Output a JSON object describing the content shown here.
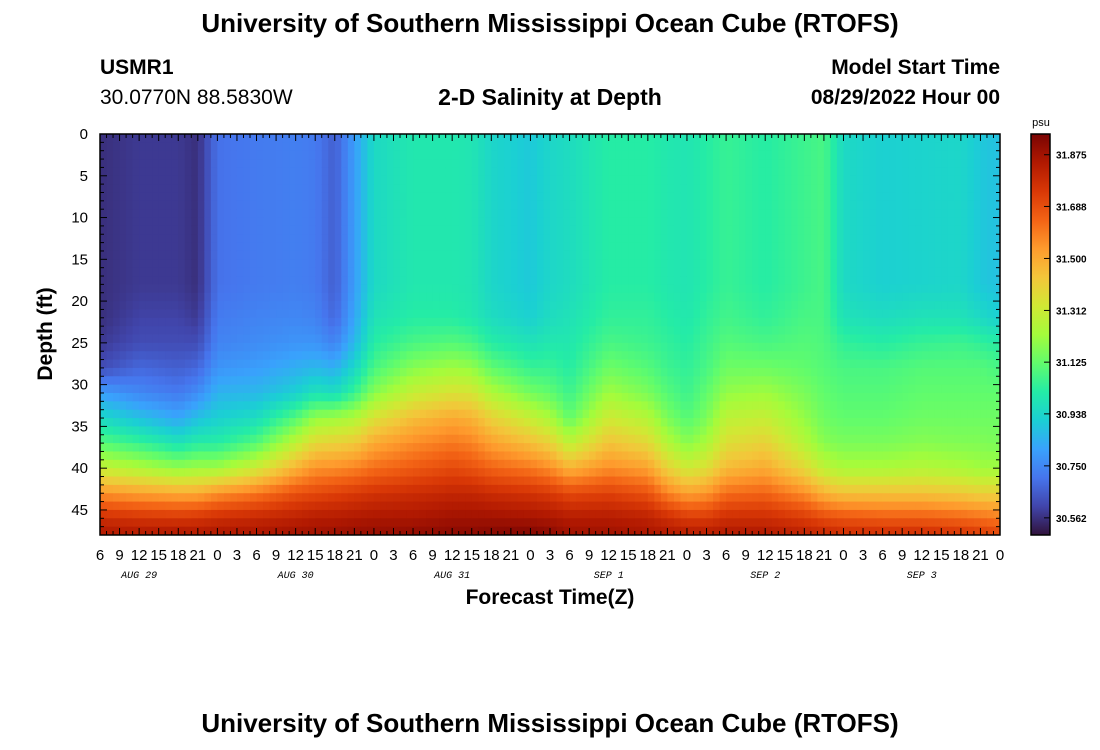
{
  "page": {
    "title": "University of Southern Mississippi Ocean Cube (RTOFS)",
    "title_repeat": "University of Southern Mississippi Ocean Cube (RTOFS)",
    "station_id": "USMR1",
    "station_coords": "30.0770N  88.5830W",
    "subtitle": "2-D Salinity at Depth",
    "start_label": "Model Start Time",
    "start_value": "08/29/2022 Hour 00"
  },
  "chart_data": {
    "type": "heatmap",
    "title": "2-D Salinity at Depth",
    "xlabel": "Forecast Time(Z)",
    "ylabel": "Depth (ft)",
    "x_tick_labels": [
      "6",
      "9",
      "12",
      "15",
      "18",
      "21",
      "0",
      "3",
      "6",
      "9",
      "12",
      "15",
      "18",
      "21",
      "0",
      "3",
      "6",
      "9",
      "12",
      "15",
      "18",
      "21",
      "0",
      "3",
      "6",
      "9",
      "12",
      "15",
      "18",
      "21",
      "0",
      "3",
      "6",
      "9",
      "12",
      "15",
      "18",
      "21",
      "0",
      "3",
      "6",
      "9",
      "12",
      "15",
      "18",
      "21",
      "0"
    ],
    "date_labels": [
      {
        "label": "AUG 29",
        "hour": 0
      },
      {
        "label": "AUG 30",
        "hour": 24
      },
      {
        "label": "AUG 31",
        "hour": 48
      },
      {
        "label": "SEP 1",
        "hour": 72
      },
      {
        "label": "SEP 2",
        "hour": 96
      },
      {
        "label": "SEP 3",
        "hour": 120
      }
    ],
    "x_range_hours_since_start": [
      6,
      144
    ],
    "y_ticks": [
      0,
      5,
      10,
      15,
      20,
      25,
      30,
      35,
      40,
      45
    ],
    "ylim": [
      0,
      48
    ],
    "colorbar": {
      "unit": "psu",
      "ticks": [
        "31.875",
        "31.688",
        "31.500",
        "31.312",
        "31.125",
        "30.938",
        "30.750",
        "30.562"
      ],
      "range": [
        30.5,
        31.95
      ],
      "colors": [
        "#30123b",
        "#4145ab",
        "#4675ed",
        "#39a2fc",
        "#1bcfd4",
        "#24eca6",
        "#61fc6c",
        "#a4fc3b",
        "#d1e834",
        "#f3c63a",
        "#fe9b2d",
        "#f36315",
        "#d93806",
        "#b11901",
        "#7a0403"
      ]
    },
    "time_nodes_hours": [
      6,
      12,
      18,
      21,
      24,
      30,
      36,
      39,
      42,
      45,
      48,
      54,
      60,
      63,
      66,
      72,
      75,
      78,
      84,
      90,
      93,
      96,
      99,
      102,
      108,
      114,
      117,
      120,
      126,
      132,
      138,
      141,
      144
    ],
    "depth_nodes_ft": [
      0,
      18,
      22,
      25,
      28,
      31,
      34,
      37,
      40,
      43,
      46,
      48
    ],
    "values_psu": [
      [
        30.56,
        30.56,
        30.56,
        30.58,
        30.62,
        30.8,
        30.95,
        31.1,
        31.3,
        31.55,
        31.78,
        31.85
      ],
      [
        30.58,
        30.58,
        30.6,
        30.62,
        30.68,
        30.75,
        30.88,
        31.05,
        31.25,
        31.52,
        31.76,
        31.85
      ],
      [
        30.58,
        30.58,
        30.6,
        30.62,
        30.66,
        30.72,
        30.82,
        30.98,
        31.2,
        31.5,
        31.75,
        31.86
      ],
      [
        30.56,
        30.56,
        30.58,
        30.62,
        30.68,
        30.76,
        30.88,
        31.02,
        31.22,
        31.5,
        31.76,
        31.85
      ],
      [
        30.7,
        30.7,
        30.72,
        30.74,
        30.78,
        30.85,
        30.92,
        31.02,
        31.22,
        31.55,
        31.78,
        31.86
      ],
      [
        30.72,
        30.72,
        30.74,
        30.76,
        30.8,
        30.86,
        30.96,
        31.1,
        31.32,
        31.6,
        31.8,
        31.86
      ],
      [
        30.73,
        30.73,
        30.75,
        30.78,
        30.84,
        30.92,
        31.1,
        31.28,
        31.48,
        31.68,
        31.82,
        31.88
      ],
      [
        30.72,
        30.72,
        30.74,
        30.78,
        30.86,
        30.98,
        31.2,
        31.38,
        31.55,
        31.7,
        31.84,
        31.88
      ],
      [
        30.66,
        30.66,
        30.68,
        30.74,
        30.84,
        30.96,
        31.22,
        31.4,
        31.56,
        31.72,
        31.84,
        31.89
      ],
      [
        30.8,
        30.8,
        30.82,
        30.86,
        30.94,
        31.05,
        31.25,
        31.42,
        31.58,
        31.74,
        31.85,
        31.9
      ],
      [
        30.95,
        30.95,
        30.98,
        31.02,
        31.08,
        31.18,
        31.35,
        31.5,
        31.62,
        31.76,
        31.86,
        31.9
      ],
      [
        31.0,
        31.0,
        31.02,
        31.08,
        31.18,
        31.3,
        31.45,
        31.56,
        31.66,
        31.78,
        31.86,
        31.91
      ],
      [
        31.0,
        31.0,
        31.02,
        31.1,
        31.22,
        31.35,
        31.5,
        31.6,
        31.7,
        31.8,
        31.88,
        31.92
      ],
      [
        30.99,
        30.99,
        31.0,
        31.08,
        31.2,
        31.34,
        31.48,
        31.58,
        31.68,
        31.8,
        31.88,
        31.92
      ],
      [
        30.94,
        30.94,
        30.96,
        31.02,
        31.12,
        31.25,
        31.4,
        31.52,
        31.64,
        31.78,
        31.88,
        31.93
      ],
      [
        30.9,
        30.9,
        30.92,
        30.98,
        31.05,
        31.15,
        31.3,
        31.45,
        31.6,
        31.76,
        31.87,
        31.94
      ],
      [
        30.94,
        30.94,
        30.96,
        31.0,
        31.05,
        31.12,
        31.24,
        31.4,
        31.56,
        31.74,
        31.86,
        31.92
      ],
      [
        30.96,
        30.96,
        30.98,
        31.0,
        31.02,
        31.06,
        31.12,
        31.28,
        31.48,
        31.7,
        31.84,
        31.88
      ],
      [
        31.02,
        31.02,
        31.04,
        31.08,
        31.14,
        31.22,
        31.32,
        31.44,
        31.56,
        31.72,
        31.84,
        31.88
      ],
      [
        31.02,
        31.02,
        31.04,
        31.06,
        31.1,
        31.16,
        31.26,
        31.38,
        31.52,
        31.68,
        31.82,
        31.86
      ],
      [
        31.0,
        31.0,
        31.02,
        31.04,
        31.06,
        31.1,
        31.16,
        31.26,
        31.4,
        31.58,
        31.78,
        31.85
      ],
      [
        30.99,
        30.99,
        31.0,
        31.02,
        31.04,
        31.06,
        31.1,
        31.18,
        31.32,
        31.52,
        31.74,
        31.84
      ],
      [
        31.02,
        31.02,
        31.04,
        31.06,
        31.08,
        31.12,
        31.16,
        31.24,
        31.36,
        31.54,
        31.74,
        31.84
      ],
      [
        31.05,
        31.05,
        31.07,
        31.1,
        31.14,
        31.2,
        31.28,
        31.36,
        31.46,
        31.62,
        31.78,
        31.85
      ],
      [
        31.02,
        31.02,
        31.04,
        31.08,
        31.14,
        31.22,
        31.3,
        31.4,
        31.5,
        31.64,
        31.78,
        31.85
      ],
      [
        31.06,
        31.06,
        31.08,
        31.1,
        31.12,
        31.16,
        31.2,
        31.26,
        31.38,
        31.56,
        31.74,
        31.82
      ],
      [
        31.08,
        31.08,
        31.08,
        31.09,
        31.1,
        31.12,
        31.14,
        31.18,
        31.28,
        31.48,
        31.7,
        31.8
      ],
      [
        30.95,
        30.95,
        30.98,
        31.04,
        31.08,
        31.1,
        31.12,
        31.16,
        31.24,
        31.44,
        31.68,
        31.78
      ],
      [
        30.92,
        30.92,
        30.96,
        31.02,
        31.08,
        31.1,
        31.12,
        31.16,
        31.24,
        31.44,
        31.66,
        31.78
      ],
      [
        30.93,
        30.93,
        30.98,
        31.05,
        31.1,
        31.12,
        31.14,
        31.18,
        31.26,
        31.44,
        31.66,
        31.78
      ],
      [
        30.94,
        30.94,
        30.98,
        31.06,
        31.1,
        31.12,
        31.14,
        31.17,
        31.24,
        31.42,
        31.64,
        31.76
      ],
      [
        30.9,
        30.9,
        30.95,
        31.04,
        31.1,
        31.12,
        31.14,
        31.17,
        31.22,
        31.4,
        31.62,
        31.74
      ],
      [
        30.88,
        30.88,
        30.92,
        31.02,
        31.08,
        31.12,
        31.14,
        31.16,
        31.22,
        31.4,
        31.6,
        31.72
      ]
    ]
  }
}
